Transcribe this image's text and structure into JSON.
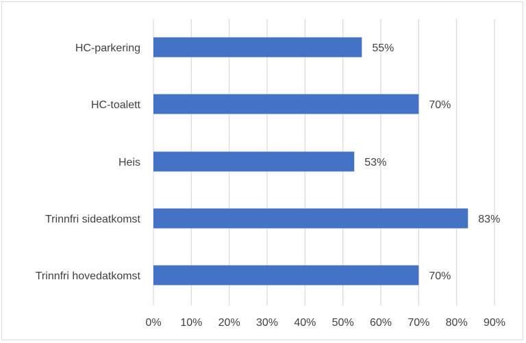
{
  "chart_data": {
    "type": "bar",
    "orientation": "horizontal",
    "categories": [
      "HC-parkering",
      "HC-toalett",
      "Heis",
      "Trinnfri sideatkomst",
      "Trinnfri hovedatkomst"
    ],
    "values": [
      55,
      70,
      53,
      83,
      70
    ],
    "data_labels": [
      "55%",
      "70%",
      "53%",
      "83%",
      "70%"
    ],
    "x_ticks": [
      "0%",
      "10%",
      "20%",
      "30%",
      "40%",
      "50%",
      "60%",
      "70%",
      "80%",
      "90%"
    ],
    "xlim": [
      0,
      90
    ],
    "title": "",
    "xlabel": "",
    "ylabel": "",
    "grid": "vertical",
    "legend": "none",
    "bar_color": "#4472c4",
    "grid_color": "#d9d9d9"
  }
}
